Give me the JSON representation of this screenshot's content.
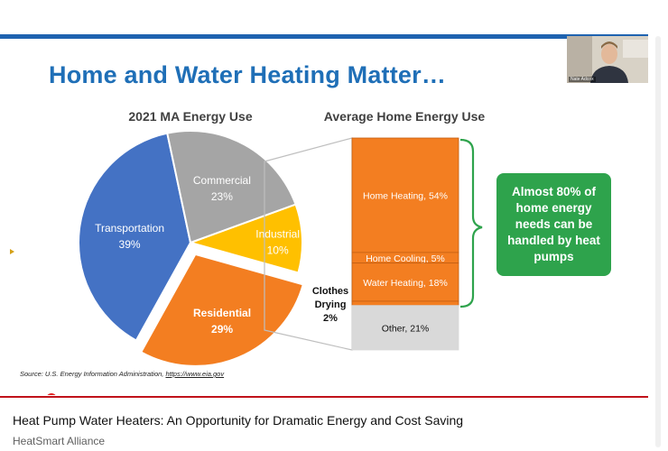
{
  "slide": {
    "title": "Home and Water Heating Matter…",
    "pie_title": "2021 MA Energy Use",
    "bar_title": "Average Home Energy Use",
    "pie_slices": [
      {
        "label": "Industrial",
        "value_label": "10%",
        "value": 10,
        "color": "#ffc000"
      },
      {
        "label": "Residential",
        "value_label": "29%",
        "value": 29,
        "color": "#f37e21"
      },
      {
        "label": "Transportation",
        "value_label": "39%",
        "value": 39,
        "color": "#4472c4"
      },
      {
        "label": "Commercial",
        "value_label": "23%",
        "value": 23,
        "color": "#a5a5a5"
      }
    ],
    "bar_segments": [
      {
        "label": "Home Heating, 54%",
        "value": 54,
        "color": "#f37e21"
      },
      {
        "label": "Home Cooling, 5%",
        "value": 5,
        "color": "#f37e21"
      },
      {
        "label": "Water Heating, 18%",
        "value": 18,
        "color": "#f37e21"
      },
      {
        "label": "",
        "value": 2,
        "color": "#f37e21"
      },
      {
        "label": "Other, 21%",
        "value": 21,
        "color": "#d9d9d9"
      }
    ],
    "clothes_label_1": "Clothes",
    "clothes_label_2": "Drying",
    "clothes_label_3": "2%",
    "callout": "Almost 80% of home energy needs can be handled by heat pumps",
    "source_prefix": "Source: U.S. Energy Information Administration, ",
    "source_link": "https://www.eia.gov",
    "webcam_label": "Nate Adcox"
  },
  "video": {
    "title": "Heat Pump Water Heaters: An Opportunity for Dramatic Energy and Cost Saving",
    "channel": "HeatSmart Alliance",
    "progress": 0.079
  },
  "colors": {
    "title_blue": "#1f6fb7",
    "orange": "#f37e21",
    "callout_green": "#2ea34c",
    "progress_red": "#e0201e"
  }
}
